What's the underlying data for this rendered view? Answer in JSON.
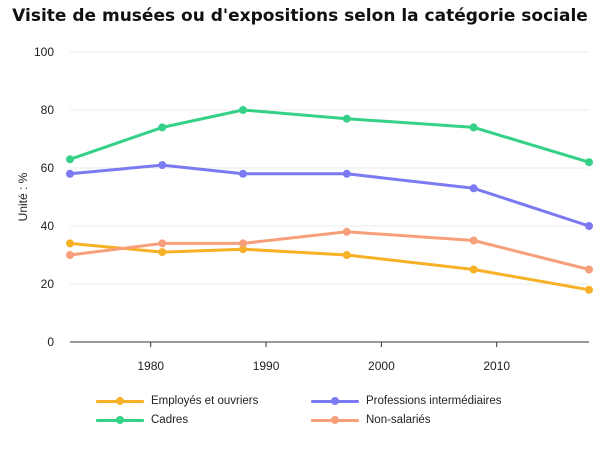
{
  "title": "Visite de musées ou d'expositions selon la catégorie sociale",
  "chart_data": {
    "type": "line",
    "title": "Visite de musées ou d'expositions selon la catégorie sociale",
    "xlabel": "",
    "ylabel": "Unité : %",
    "xlim": [
      1973,
      2018
    ],
    "ylim": [
      0,
      100
    ],
    "xticks": [
      1980,
      1990,
      2000,
      2010
    ],
    "yticks": [
      0,
      20,
      40,
      60,
      80,
      100
    ],
    "grid": "horizontal",
    "legend_position": "bottom",
    "x": [
      1973,
      1981,
      1988,
      1997,
      2008,
      2018
    ],
    "series": [
      {
        "name": "Employés et ouvriers",
        "color": "#f6b127",
        "values": [
          34,
          31,
          32,
          30,
          25,
          18
        ]
      },
      {
        "name": "Professions intermédiaires",
        "color": "#7b7af2",
        "values": [
          58,
          61,
          58,
          58,
          53,
          40
        ]
      },
      {
        "name": "Cadres",
        "color": "#35d188",
        "values": [
          63,
          74,
          80,
          77,
          74,
          62
        ]
      },
      {
        "name": "Non-salariés",
        "color": "#f79f7a",
        "values": [
          30,
          34,
          34,
          38,
          35,
          25
        ]
      }
    ]
  }
}
